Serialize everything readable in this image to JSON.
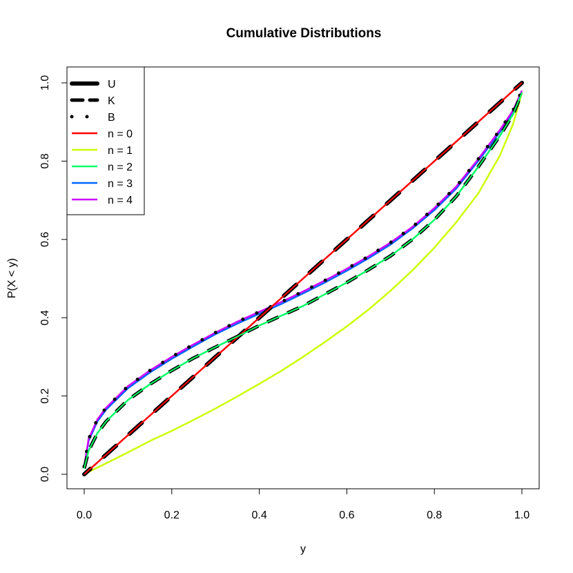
{
  "chart_data": {
    "type": "line",
    "title": "Cumulative Distributions",
    "xlabel": "y",
    "ylabel": "P(X < y)",
    "xlim": [
      0,
      1
    ],
    "ylim": [
      0,
      1
    ],
    "grid": false,
    "legend_position": "top-left",
    "x_ticks": [
      "0.0",
      "0.2",
      "0.4",
      "0.6",
      "0.8",
      "1.0"
    ],
    "y_ticks": [
      "0.0",
      "0.2",
      "0.4",
      "0.6",
      "0.8",
      "1.0"
    ],
    "legend": [
      {
        "label": "U",
        "style": "solid-thick",
        "color": "#000000"
      },
      {
        "label": "K",
        "style": "dashed-thick",
        "color": "#000000"
      },
      {
        "label": "B",
        "style": "dotted-thick",
        "color": "#000000"
      },
      {
        "label": "n = 0",
        "style": "solid",
        "color": "#FF0000"
      },
      {
        "label": "n = 1",
        "style": "solid",
        "color": "#CCFF00"
      },
      {
        "label": "n = 2",
        "style": "solid",
        "color": "#00FF66"
      },
      {
        "label": "n = 3",
        "style": "solid",
        "color": "#0066FF"
      },
      {
        "label": "n = 4",
        "style": "solid",
        "color": "#CC00FF"
      }
    ],
    "x": [
      0,
      0.01,
      0.03,
      0.05,
      0.1,
      0.15,
      0.2,
      0.25,
      0.3,
      0.35,
      0.4,
      0.45,
      0.5,
      0.55,
      0.6,
      0.65,
      0.7,
      0.75,
      0.8,
      0.85,
      0.9,
      0.95,
      0.98,
      1.0
    ],
    "series": [
      {
        "name": "n = 0",
        "color": "#FF0000",
        "overlay": "U",
        "values": [
          0,
          0.01,
          0.03,
          0.05,
          0.1,
          0.15,
          0.2,
          0.25,
          0.3,
          0.35,
          0.4,
          0.45,
          0.5,
          0.55,
          0.6,
          0.65,
          0.7,
          0.75,
          0.8,
          0.85,
          0.9,
          0.95,
          0.98,
          1.0
        ]
      },
      {
        "name": "n = 1",
        "color": "#CCFF00",
        "values": [
          0,
          0.006,
          0.017,
          0.028,
          0.056,
          0.085,
          0.111,
          0.139,
          0.168,
          0.199,
          0.231,
          0.264,
          0.3,
          0.338,
          0.378,
          0.421,
          0.469,
          0.521,
          0.579,
          0.644,
          0.717,
          0.815,
          0.895,
          0.975
        ]
      },
      {
        "name": "n = 2",
        "color": "#00FF66",
        "overlay": "K",
        "values": [
          0.015,
          0.06,
          0.105,
          0.135,
          0.19,
          0.23,
          0.265,
          0.297,
          0.325,
          0.352,
          0.38,
          0.405,
          0.43,
          0.46,
          0.49,
          0.523,
          0.558,
          0.6,
          0.65,
          0.71,
          0.785,
          0.865,
          0.92,
          0.975
        ]
      },
      {
        "name": "n = 3",
        "color": "#0066FF",
        "values": [
          0.02,
          0.085,
          0.135,
          0.165,
          0.22,
          0.26,
          0.295,
          0.327,
          0.358,
          0.385,
          0.41,
          0.435,
          0.462,
          0.49,
          0.52,
          0.552,
          0.587,
          0.628,
          0.675,
          0.73,
          0.8,
          0.875,
          0.925,
          0.975
        ]
      },
      {
        "name": "n = 4",
        "color": "#CC00FF",
        "overlay": "B",
        "values": [
          0.02,
          0.09,
          0.14,
          0.17,
          0.225,
          0.265,
          0.3,
          0.332,
          0.362,
          0.39,
          0.415,
          0.44,
          0.467,
          0.495,
          0.525,
          0.557,
          0.592,
          0.632,
          0.68,
          0.735,
          0.805,
          0.88,
          0.93,
          0.98
        ]
      }
    ]
  }
}
